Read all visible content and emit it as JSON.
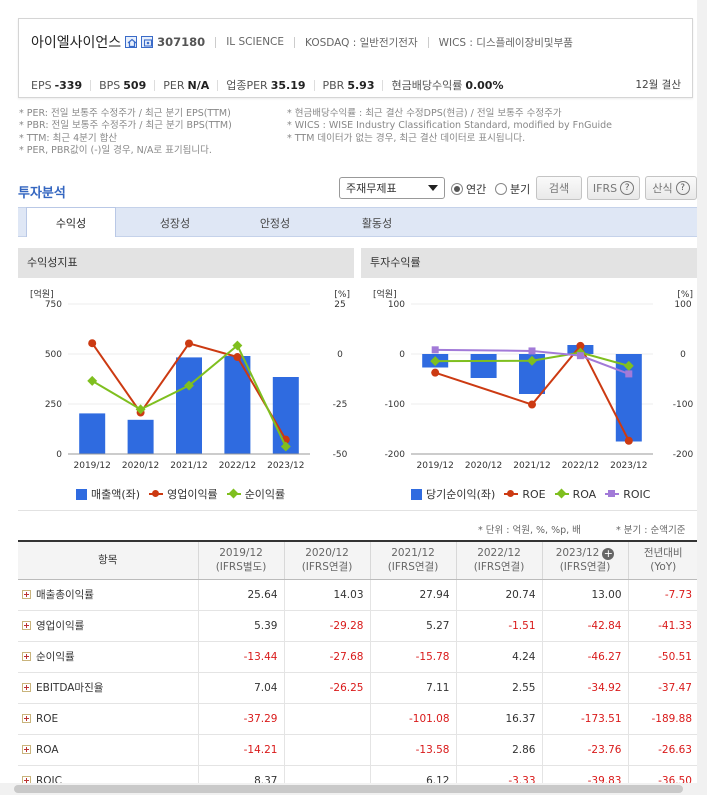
{
  "company": {
    "name": "아이엘사이언스",
    "code": "307180",
    "eng_name": "IL SCIENCE",
    "market": "KOSDAQ : 일반전기전자",
    "wics": "WICS : 디스플레이장비및부품"
  },
  "metrics": [
    {
      "label": "EPS",
      "value": "-339"
    },
    {
      "label": "BPS",
      "value": "509"
    },
    {
      "label": "PER",
      "value": "N/A"
    },
    {
      "label": "업종PER",
      "value": "35.19"
    },
    {
      "label": "PBR",
      "value": "5.93"
    },
    {
      "label": "현금배당수익률",
      "value": "0.00%"
    }
  ],
  "settlement": "12월 결산",
  "notes_left": [
    "* PER: 전일 보통주 수정주가 / 최근 분기 EPS(TTM)",
    "* PBR: 전일 보통주 수정주가 / 최근 분기 BPS(TTM)",
    "* TTM: 최근 4분기 합산",
    "* PER, PBR값이 (-)일 경우, N/A로 표기됩니다."
  ],
  "notes_right": [
    "* 현금배당수익률 : 최근 결산 수정DPS(현금) / 전일 보통주 수정주가",
    "* WICS : WISE Industry Classification Standard, modified by FnGuide",
    "* TTM 데이터가 없는 경우, 최근 결산 데이터로 표시됩니다."
  ],
  "section_title": "투자분석",
  "controls": {
    "select_value": "주재무제표",
    "radio_annual": "연간",
    "radio_quarter": "분기",
    "search_button": "검색",
    "ifrs_button": "IFRS",
    "formula_button": "산식"
  },
  "tabs": [
    "수익성",
    "성장성",
    "안정성",
    "활동성"
  ],
  "panels": {
    "left_title": "수익성지표",
    "right_title": "투자수익률"
  },
  "chart_data": [
    {
      "type": "bar",
      "title": "수익성지표",
      "categories": [
        "2019/12",
        "2020/12",
        "2021/12",
        "2022/12",
        "2023/12"
      ],
      "left_axis_label": "[억원]",
      "right_axis_label": "[%]",
      "ylim_left": [
        0,
        750
      ],
      "ylim_right": [
        -50,
        25
      ],
      "left_ticks": [
        0,
        250,
        500,
        750
      ],
      "right_ticks": [
        -50,
        -25,
        0,
        25
      ],
      "bar_series": {
        "name": "매출액(좌)",
        "color": "#2f6be0",
        "values": [
          203,
          171,
          483,
          490,
          385
        ]
      },
      "line_series": [
        {
          "name": "영업이익률",
          "color": "#cc3a12",
          "marker": "circle",
          "values": [
            5.39,
            -29.28,
            5.27,
            -1.51,
            -42.84
          ]
        },
        {
          "name": "순이익률",
          "color": "#7fbf1f",
          "marker": "diamond",
          "values": [
            -13.44,
            -27.68,
            -15.78,
            4.24,
            -46.27
          ]
        }
      ]
    },
    {
      "type": "bar",
      "title": "투자수익률",
      "categories": [
        "2019/12",
        "2020/12",
        "2021/12",
        "2022/12",
        "2023/12"
      ],
      "left_axis_label": "[억원]",
      "right_axis_label": "[%]",
      "ylim_left": [
        -200,
        100
      ],
      "ylim_right": [
        -200,
        100
      ],
      "left_ticks": [
        -200,
        -100,
        0,
        100
      ],
      "right_ticks": [
        -200,
        -100,
        0,
        100
      ],
      "bar_series": {
        "name": "당기순이익(좌)",
        "color": "#2f6be0",
        "values": [
          -27,
          -48,
          -80,
          18,
          -175
        ]
      },
      "line_series": [
        {
          "name": "ROE",
          "color": "#cc3a12",
          "marker": "circle",
          "values": [
            -37.29,
            null,
            -101.08,
            16.37,
            -173.51
          ]
        },
        {
          "name": "ROA",
          "color": "#7fbf1f",
          "marker": "diamond",
          "values": [
            -14.21,
            null,
            -13.58,
            2.86,
            -23.76
          ]
        },
        {
          "name": "ROIC",
          "color": "#a27ad8",
          "marker": "square",
          "values": [
            8.37,
            null,
            6.12,
            -3.33,
            -39.83
          ]
        }
      ]
    }
  ],
  "unit_note": "* 단위 : 억원, %, %p, 배",
  "period_note": "* 분기 : 순액기준",
  "table": {
    "headers": [
      {
        "line1": "항목",
        "line2": ""
      },
      {
        "line1": "2019/12",
        "line2": "(IFRS별도)"
      },
      {
        "line1": "2020/12",
        "line2": "(IFRS연결)"
      },
      {
        "line1": "2021/12",
        "line2": "(IFRS연결)"
      },
      {
        "line1": "2022/12",
        "line2": "(IFRS연결)"
      },
      {
        "line1": "2023/12",
        "line2": "(IFRS연결)"
      },
      {
        "line1": "전년대비",
        "line2": "(YoY)"
      }
    ],
    "rows": [
      {
        "label": "매출총이익률",
        "values": [
          "25.64",
          "14.03",
          "27.94",
          "20.74",
          "13.00",
          "-7.73"
        ]
      },
      {
        "label": "영업이익률",
        "values": [
          "5.39",
          "-29.28",
          "5.27",
          "-1.51",
          "-42.84",
          "-41.33"
        ]
      },
      {
        "label": "순이익률",
        "values": [
          "-13.44",
          "-27.68",
          "-15.78",
          "4.24",
          "-46.27",
          "-50.51"
        ]
      },
      {
        "label": "EBITDA마진율",
        "values": [
          "7.04",
          "-26.25",
          "7.11",
          "2.55",
          "-34.92",
          "-37.47"
        ]
      },
      {
        "label": "ROE",
        "values": [
          "-37.29",
          "",
          "-101.08",
          "16.37",
          "-173.51",
          "-189.88"
        ]
      },
      {
        "label": "ROA",
        "values": [
          "-14.21",
          "",
          "-13.58",
          "2.86",
          "-23.76",
          "-26.63"
        ]
      },
      {
        "label": "ROIC",
        "values": [
          "8.37",
          "",
          "6.12",
          "-3.33",
          "-39.83",
          "-36.50"
        ]
      }
    ]
  }
}
